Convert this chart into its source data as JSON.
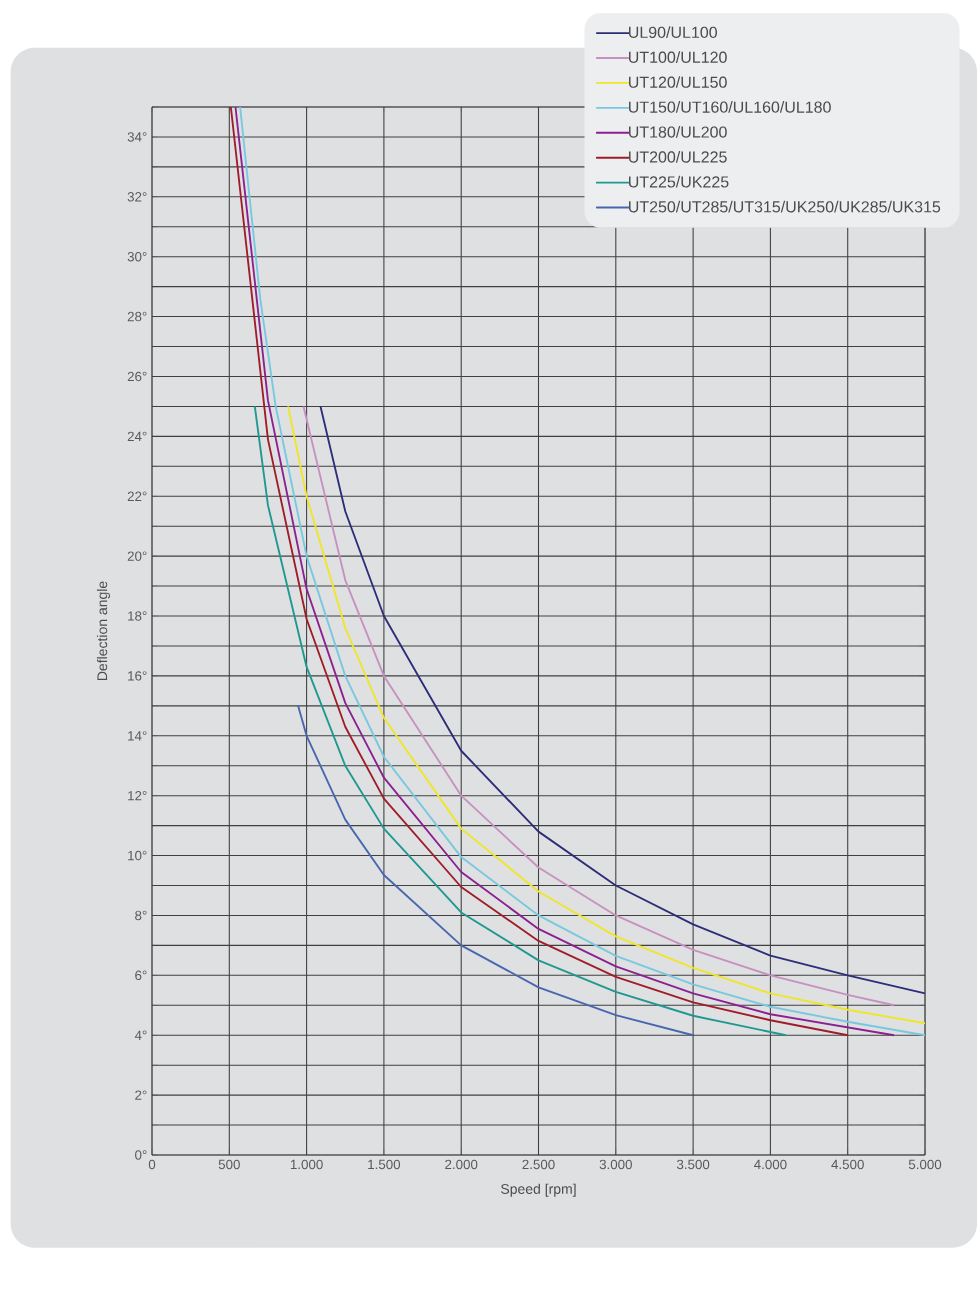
{
  "chart_data": {
    "type": "line",
    "xlabel": "Speed   [rpm]",
    "ylabel": "Deflection angle",
    "xlim": [
      0,
      5000
    ],
    "ylim": [
      0,
      35
    ],
    "xticks": [
      0,
      500,
      {
        "value": 1000,
        "label": "1.000"
      },
      {
        "value": 1500,
        "label": "1.500"
      },
      {
        "value": 2000,
        "label": "2.000"
      },
      {
        "value": 2500,
        "label": "2.500"
      },
      {
        "value": 3000,
        "label": "3.000"
      },
      {
        "value": 3500,
        "label": "3.500"
      },
      {
        "value": 4000,
        "label": "4.000"
      },
      {
        "value": 4500,
        "label": "4.500"
      },
      {
        "value": 5000,
        "label": "5.000"
      }
    ],
    "yticks": [
      {
        "value": 0,
        "label": "0°"
      },
      {
        "value": 1,
        "label": null
      },
      {
        "value": 2,
        "label": "2°"
      },
      {
        "value": 3,
        "label": null
      },
      {
        "value": 4,
        "label": "4°"
      },
      {
        "value": 5,
        "label": null
      },
      {
        "value": 6,
        "label": "6°"
      },
      {
        "value": 7,
        "label": null
      },
      {
        "value": 8,
        "label": "8°"
      },
      {
        "value": 9,
        "label": null
      },
      {
        "value": 10,
        "label": "10°"
      },
      {
        "value": 11,
        "label": null
      },
      {
        "value": 12,
        "label": "12°"
      },
      {
        "value": 13,
        "label": null
      },
      {
        "value": 14,
        "label": "14°"
      },
      {
        "value": 15,
        "label": null
      },
      {
        "value": 16,
        "label": "16°"
      },
      {
        "value": 17,
        "label": null
      },
      {
        "value": 18,
        "label": "18°"
      },
      {
        "value": 19,
        "label": null
      },
      {
        "value": 20,
        "label": "20°"
      },
      {
        "value": 21,
        "label": null
      },
      {
        "value": 22,
        "label": "22°"
      },
      {
        "value": 23,
        "label": null
      },
      {
        "value": 24,
        "label": "24°"
      },
      {
        "value": 25,
        "label": null
      },
      {
        "value": 26,
        "label": "26°"
      },
      {
        "value": 27,
        "label": null
      },
      {
        "value": 28,
        "label": "28°"
      },
      {
        "value": 29,
        "label": null
      },
      {
        "value": 30,
        "label": "30°"
      },
      {
        "value": 31,
        "label": null
      },
      {
        "value": 32,
        "label": "32°"
      },
      {
        "value": 33,
        "label": null
      },
      {
        "value": 34,
        "label": "34°"
      },
      {
        "value": 35,
        "label": null
      }
    ],
    "grid": true,
    "legend": "top right",
    "marker": "none",
    "line_style": "solid",
    "series": [
      {
        "name": "UL90/UL100",
        "color": "#2e2e78",
        "x": [
          1090,
          1250,
          1500,
          2000,
          2500,
          3000,
          3500,
          4000,
          4500,
          5000
        ],
        "values": [
          25,
          21.5,
          18,
          13.5,
          10.8,
          9,
          7.7,
          6.66,
          6,
          5.4
        ]
      },
      {
        "name": "UT100/UL120",
        "color": "#c890c0",
        "x": [
          980,
          1250,
          1500,
          2000,
          2500,
          3000,
          3500,
          4000,
          4500,
          4800
        ],
        "values": [
          25,
          19.2,
          16,
          12,
          9.6,
          8,
          6.85,
          6,
          5.35,
          5
        ]
      },
      {
        "name": "UT120/UL150",
        "color": "#f0e628",
        "x": [
          880,
          1000,
          1250,
          1500,
          2000,
          2500,
          3000,
          3500,
          4000,
          4500,
          5000
        ],
        "values": [
          25,
          22,
          17.6,
          14.6,
          10.9,
          8.8,
          7.3,
          6.25,
          5.4,
          4.85,
          4.4
        ]
      },
      {
        "name": "UT150/UT160/UL160/UL180",
        "color": "#78c8e0",
        "x": [
          570,
          700,
          800,
          1000,
          1250,
          1500,
          2000,
          2500,
          3000,
          3500,
          4000,
          4500,
          5000
        ],
        "values": [
          35,
          28.6,
          25,
          20,
          16,
          13.3,
          9.95,
          8,
          6.65,
          5.7,
          4.95,
          4.45,
          4
        ]
      },
      {
        "name": "UT180/UL200",
        "color": "#8c2090",
        "x": [
          540,
          750,
          1000,
          1250,
          1500,
          2000,
          2500,
          3000,
          3500,
          4000,
          4800
        ],
        "values": [
          35,
          25.2,
          18.9,
          15.1,
          12.6,
          9.45,
          7.55,
          6.3,
          5.4,
          4.7,
          4
        ]
      },
      {
        "name": "UT200/UL225",
        "color": "#a01c28",
        "x": [
          510,
          750,
          1000,
          1250,
          1500,
          2000,
          2500,
          3000,
          3500,
          4000,
          4500
        ],
        "values": [
          35,
          23.9,
          17.9,
          14.3,
          11.9,
          8.95,
          7.15,
          5.95,
          5.1,
          4.5,
          4
        ]
      },
      {
        "name": "UT225/UK225",
        "color": "#1e9890",
        "x": [
          665,
          750,
          1000,
          1250,
          1500,
          2000,
          2500,
          3000,
          3500,
          4100
        ],
        "values": [
          25,
          21.7,
          16.3,
          13,
          10.9,
          8.1,
          6.5,
          5.45,
          4.65,
          4
        ]
      },
      {
        "name": "UT250/UT285/UT315/UK250/UK285/UK315",
        "color": "#4866b0",
        "x": [
          945,
          1000,
          1250,
          1500,
          2000,
          2500,
          3000,
          3500
        ],
        "values": [
          15,
          14,
          11.2,
          9.35,
          7,
          5.6,
          4.67,
          4
        ]
      }
    ]
  }
}
